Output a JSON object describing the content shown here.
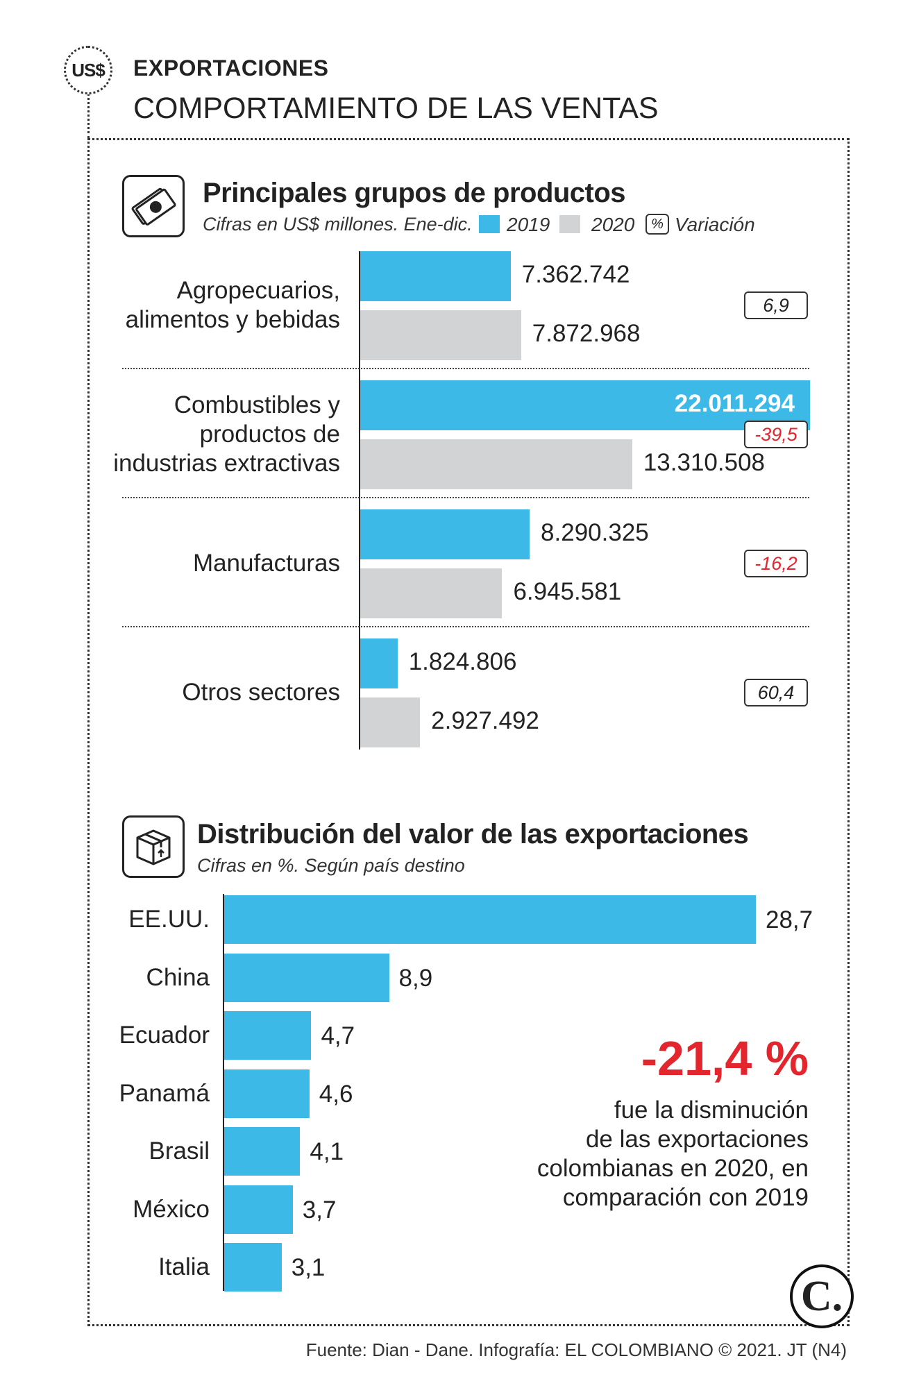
{
  "header": {
    "badge": "US$",
    "title": "EXPORTACIONES",
    "subtitle": "COMPORTAMIENTO DE LAS VENTAS"
  },
  "section1": {
    "icon": "money-bill-icon",
    "title": "Principales grupos de productos",
    "subtitle": "Cifras en US$ millones. Ene-dic.",
    "legend": {
      "y2019": "2019",
      "y2020": "2020",
      "pct_symbol": "%",
      "variation": "Variación"
    }
  },
  "chart_data": [
    {
      "type": "bar",
      "orientation": "horizontal",
      "title": "Principales grupos de productos",
      "subtitle": "Cifras en US$ millones. Ene-dic.",
      "categories": [
        [
          "Agropecuarios,",
          "alimentos y bebidas"
        ],
        [
          "Combustibles y",
          "productos de",
          "industrias extractivas"
        ],
        [
          "Manufacturas"
        ],
        [
          "Otros sectores"
        ]
      ],
      "series": [
        {
          "name": "2019",
          "color": "#3db9e7",
          "values": [
            7362742,
            22011294,
            8290325,
            1824806
          ],
          "labels": [
            "7.362.742",
            "22.011.294",
            "8.290.325",
            "1.824.806"
          ]
        },
        {
          "name": "2020",
          "color": "#d2d3d5",
          "values": [
            7872968,
            13310508,
            6945581,
            2927492
          ],
          "labels": [
            "7.872.968",
            "13.310.508",
            "6.945.581",
            "2.927.492"
          ]
        }
      ],
      "variation": {
        "name": "Variación",
        "values": [
          "6,9",
          "-39,5",
          "-16,2",
          "60,4"
        ],
        "negative_color": "#e3262d"
      },
      "xlim": [
        0,
        22011294
      ],
      "legend": "top"
    },
    {
      "type": "bar",
      "orientation": "horizontal",
      "title": "Distribución del valor de las exportaciones",
      "subtitle": "Cifras en %. Según país destino",
      "categories": [
        "EE.UU.",
        "China",
        "Ecuador",
        "Panamá",
        "Brasil",
        "México",
        "Italia"
      ],
      "values": [
        28.7,
        8.9,
        4.7,
        4.6,
        4.1,
        3.7,
        3.1
      ],
      "labels": [
        "28,7",
        "8,9",
        "4,7",
        "4,6",
        "4,1",
        "3,7",
        "3,1"
      ],
      "color": "#3db9e7",
      "xlim": [
        0,
        28.7
      ]
    }
  ],
  "section2": {
    "icon": "box-package-icon",
    "title": "Distribución del valor de las exportaciones",
    "subtitle": "Cifras en %. Según país destino"
  },
  "note": {
    "value": "-21,4 %",
    "lines": [
      "fue la disminución",
      "de las exportaciones",
      "colombianas en 2020, en",
      "comparación con 2019"
    ]
  },
  "logo": "C.",
  "source": "Fuente: Dian - Dane. Infografía: EL COLOMBIANO © 2021. JT (N4)"
}
